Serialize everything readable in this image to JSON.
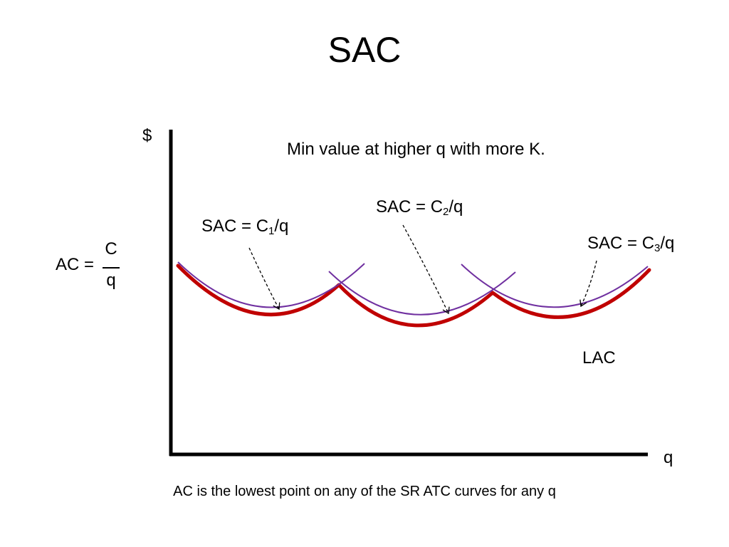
{
  "title": "SAC",
  "axes": {
    "y_label": "$",
    "x_label": "q"
  },
  "note": "Min value at higher q with more K.",
  "formula": {
    "lhs": "AC",
    "eq": "=",
    "numerator": "C",
    "denominator": "q"
  },
  "curve_labels": {
    "sac1": {
      "pre": "SAC = C",
      "sub": "1",
      "post": "/q"
    },
    "sac2": {
      "pre": "SAC = C",
      "sub": "2",
      "post": "/q"
    },
    "sac3": {
      "pre": "SAC = C",
      "sub": "3",
      "post": "/q"
    },
    "lac": "LAC"
  },
  "caption": "AC is the lowest point on any of the SR ATC curves for any q",
  "colors": {
    "lac": "#c00000",
    "sac": "#7030a0",
    "axis": "#000000"
  }
}
